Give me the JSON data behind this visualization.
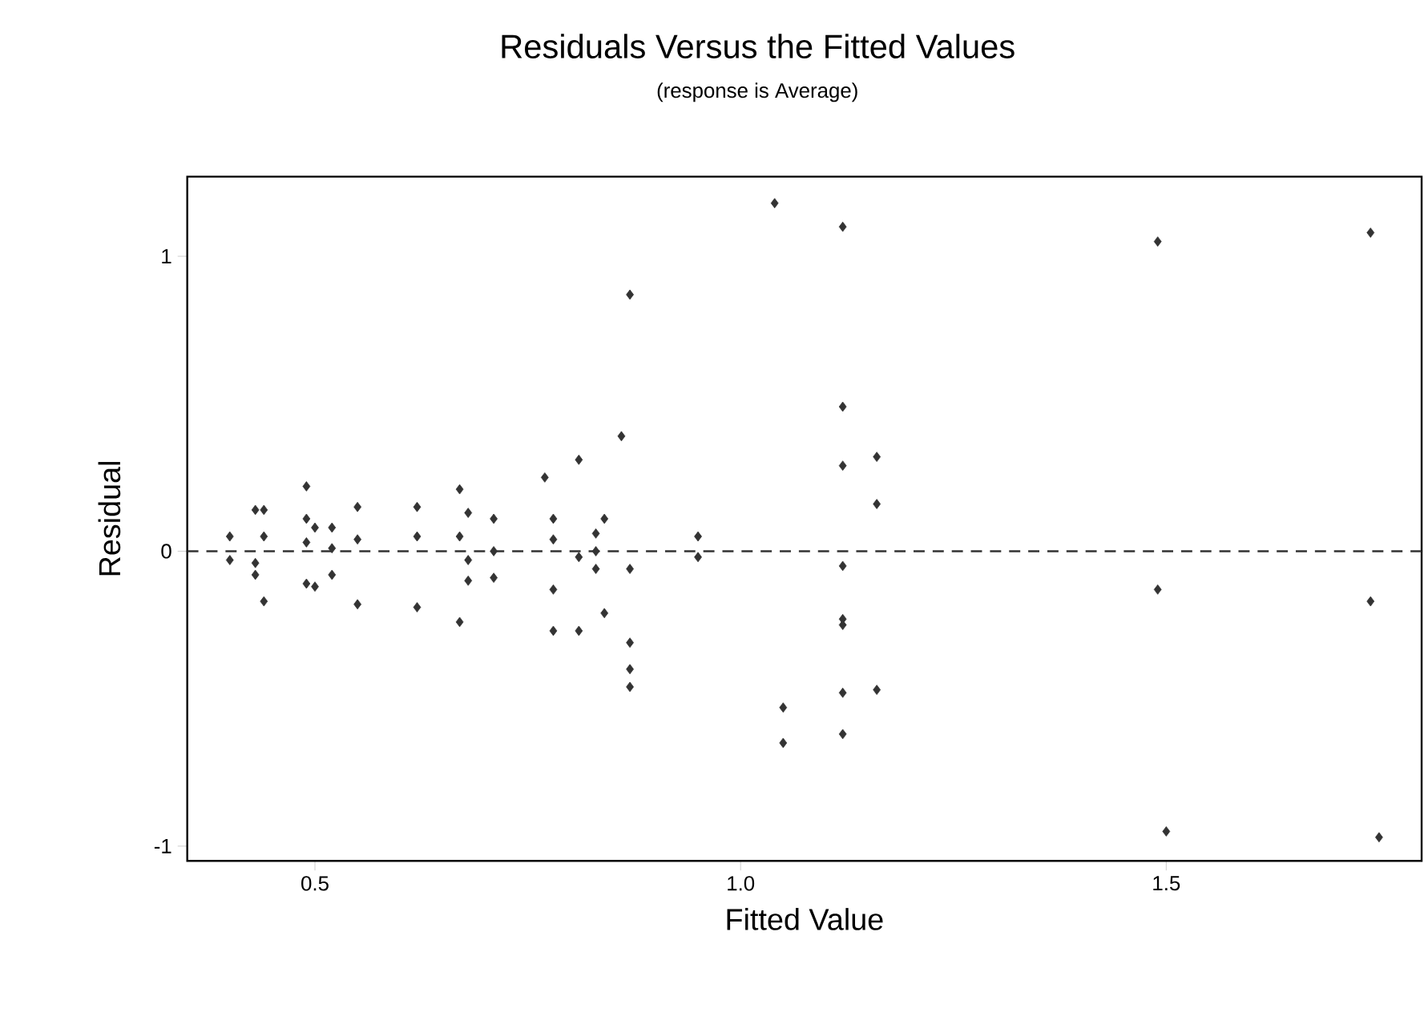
{
  "chart_data": {
    "type": "scatter",
    "title": "Residuals Versus the Fitted Values",
    "subtitle": "(response is Average)",
    "xlabel": "Fitted Value",
    "ylabel": "Residual",
    "x": [
      0.4,
      0.4,
      0.43,
      0.44,
      0.44,
      0.43,
      0.43,
      0.44,
      0.49,
      0.49,
      0.5,
      0.52,
      0.49,
      0.52,
      0.49,
      0.5,
      0.52,
      0.55,
      0.55,
      0.55,
      0.62,
      0.62,
      0.62,
      0.67,
      0.68,
      0.71,
      0.67,
      0.68,
      0.71,
      0.68,
      0.71,
      0.67,
      0.77,
      0.81,
      0.78,
      0.78,
      0.81,
      0.78,
      0.78,
      0.81,
      0.84,
      0.83,
      0.83,
      0.83,
      0.84,
      0.86,
      0.87,
      0.87,
      0.87,
      0.87,
      0.87,
      0.95,
      0.95,
      1.04,
      1.12,
      1.12,
      1.12,
      1.16,
      1.16,
      1.12,
      1.12,
      1.12,
      1.12,
      1.16,
      1.05,
      1.05,
      1.12,
      1.49,
      1.74,
      1.49,
      1.74,
      1.5,
      1.75
    ],
    "values": [
      0.05,
      -0.03,
      0.14,
      0.14,
      0.05,
      -0.04,
      -0.08,
      -0.17,
      0.22,
      0.11,
      0.08,
      0.08,
      0.03,
      0.01,
      -0.11,
      -0.12,
      -0.08,
      0.15,
      0.04,
      -0.18,
      0.15,
      0.05,
      -0.19,
      0.21,
      0.13,
      0.11,
      0.05,
      -0.03,
      0.0,
      -0.1,
      -0.09,
      -0.24,
      0.25,
      0.31,
      0.11,
      0.04,
      -0.02,
      -0.13,
      -0.27,
      -0.27,
      0.11,
      0.06,
      0.0,
      -0.06,
      -0.21,
      0.39,
      0.87,
      -0.06,
      -0.31,
      -0.4,
      -0.46,
      0.05,
      -0.02,
      1.18,
      1.1,
      0.49,
      0.29,
      0.32,
      0.16,
      -0.05,
      -0.23,
      -0.25,
      -0.48,
      -0.47,
      -0.53,
      -0.65,
      -0.62,
      1.05,
      1.08,
      -0.13,
      -0.17,
      -0.95,
      -0.97
    ],
    "color": "#333333",
    "marker": "diamond",
    "xlim": [
      0.35,
      1.8
    ],
    "ylim": [
      -1.05,
      1.27
    ],
    "xticks": [
      0.5,
      {
        "value": 1,
        "label": "1.0"
      },
      1.5
    ],
    "yticks": [
      -1,
      0,
      1
    ],
    "ref_lines": [
      {
        "axis": "y",
        "value": 0,
        "line_style": "dashed",
        "color": "#333333"
      }
    ]
  }
}
